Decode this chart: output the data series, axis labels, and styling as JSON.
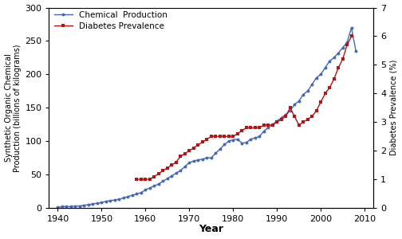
{
  "title": "",
  "xlabel": "Year",
  "ylabel_left": "Synthetic Organic Chemical\nProduction (billions of kilograms)",
  "ylabel_right": "Diabetes Prevalence (%)",
  "xlim": [
    1938,
    2012
  ],
  "ylim_left": [
    0,
    300
  ],
  "ylim_right": [
    0,
    7
  ],
  "xticks": [
    1940,
    1950,
    1960,
    1970,
    1980,
    1990,
    2000,
    2010
  ],
  "yticks_left": [
    0,
    50,
    100,
    150,
    200,
    250,
    300
  ],
  "yticks_right": [
    0,
    1,
    2,
    3,
    4,
    5,
    6,
    7
  ],
  "chem_color": "#4466bb",
  "diab_color": "#bb1111",
  "legend_labels": [
    "Chemical  Production",
    "Diabetes Prevalence"
  ],
  "chem_years": [
    1940,
    1941,
    1942,
    1943,
    1944,
    1945,
    1946,
    1947,
    1948,
    1949,
    1950,
    1951,
    1952,
    1953,
    1954,
    1955,
    1956,
    1957,
    1958,
    1959,
    1960,
    1961,
    1962,
    1963,
    1964,
    1965,
    1966,
    1967,
    1968,
    1969,
    1970,
    1971,
    1972,
    1973,
    1974,
    1975,
    1976,
    1977,
    1978,
    1979,
    1980,
    1981,
    1982,
    1983,
    1984,
    1985,
    1986,
    1987,
    1988,
    1989,
    1990,
    1991,
    1992,
    1993,
    1994,
    1995,
    1996,
    1997,
    1998,
    1999,
    2000,
    2001,
    2002,
    2003,
    2004,
    2005,
    2006,
    2007,
    2008
  ],
  "chem_values": [
    1,
    2,
    2,
    2,
    3,
    3,
    4,
    5,
    6,
    7,
    8,
    10,
    11,
    12,
    13,
    15,
    17,
    19,
    21,
    23,
    27,
    30,
    33,
    36,
    40,
    44,
    48,
    52,
    56,
    62,
    68,
    70,
    72,
    73,
    75,
    75,
    82,
    88,
    95,
    100,
    102,
    103,
    97,
    98,
    103,
    105,
    107,
    115,
    120,
    125,
    130,
    135,
    140,
    145,
    155,
    160,
    170,
    175,
    185,
    195,
    200,
    210,
    220,
    225,
    232,
    240,
    248,
    270,
    235
  ],
  "diab_years": [
    1958,
    1959,
    1960,
    1961,
    1962,
    1963,
    1964,
    1965,
    1966,
    1967,
    1968,
    1969,
    1970,
    1971,
    1972,
    1973,
    1974,
    1975,
    1976,
    1977,
    1978,
    1979,
    1980,
    1981,
    1982,
    1983,
    1984,
    1985,
    1986,
    1987,
    1988,
    1989,
    1990,
    1991,
    1992,
    1993,
    1994,
    1995,
    1996,
    1997,
    1998,
    1999,
    2000,
    2001,
    2002,
    2003,
    2004,
    2005,
    2006,
    2007
  ],
  "diab_values": [
    1.0,
    1.0,
    1.0,
    1.0,
    1.1,
    1.2,
    1.3,
    1.4,
    1.5,
    1.6,
    1.8,
    1.9,
    2.0,
    2.1,
    2.2,
    2.3,
    2.4,
    2.5,
    2.5,
    2.5,
    2.5,
    2.5,
    2.5,
    2.6,
    2.7,
    2.8,
    2.8,
    2.8,
    2.8,
    2.9,
    2.9,
    2.9,
    3.0,
    3.1,
    3.2,
    3.5,
    3.2,
    2.9,
    3.0,
    3.1,
    3.2,
    3.4,
    3.7,
    4.0,
    4.2,
    4.5,
    4.9,
    5.2,
    5.7,
    6.0
  ],
  "figsize": [
    5.04,
    3.0
  ],
  "dpi": 100
}
